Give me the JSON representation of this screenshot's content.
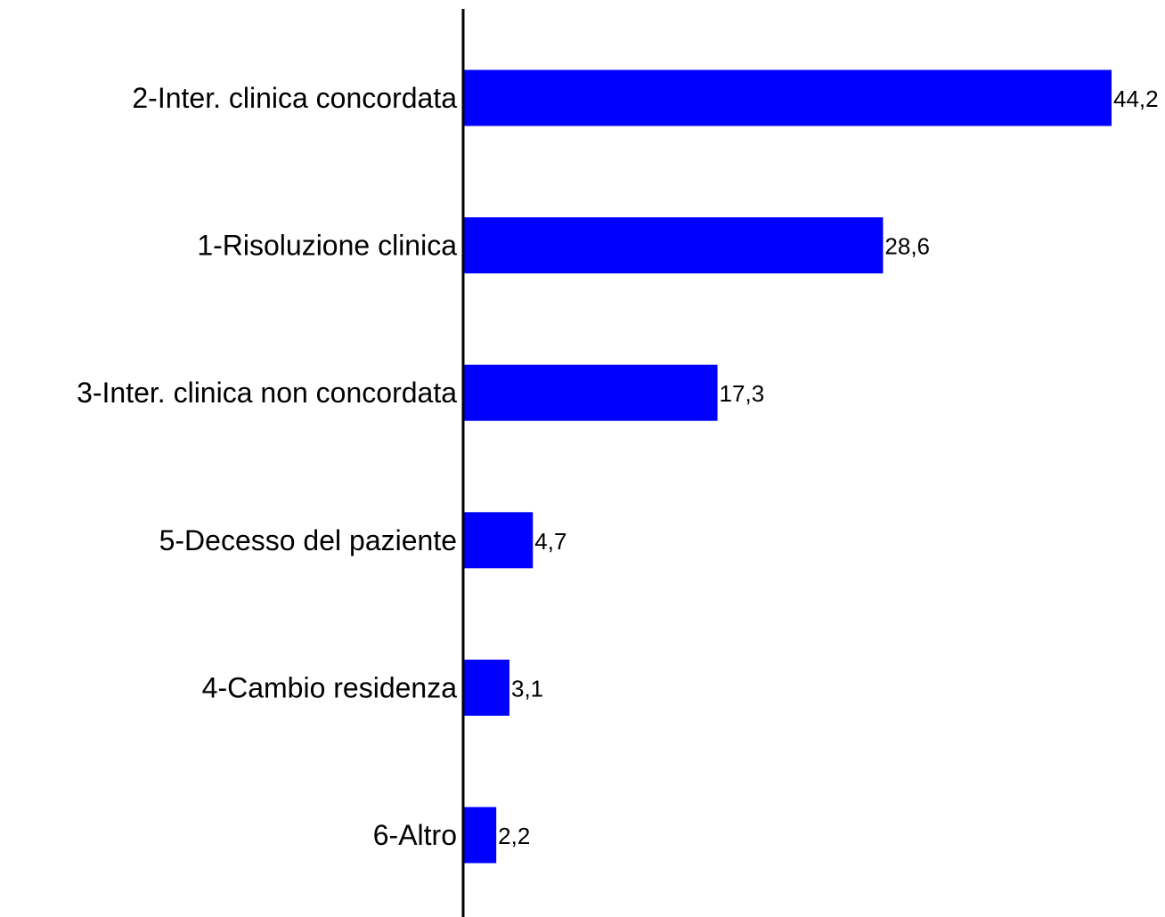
{
  "chart_data": {
    "type": "bar",
    "orientation": "horizontal",
    "categories": [
      "2-Inter. clinica concordata",
      "1-Risoluzione clinica",
      "3-Inter. clinica non concordata",
      "5-Decesso del paziente",
      "4-Cambio residenza",
      "6-Altro"
    ],
    "values": [
      44.2,
      28.6,
      17.3,
      4.7,
      3.1,
      2.2
    ],
    "value_labels": [
      "44,2",
      "28,6",
      "17,3",
      "4,7",
      "3,1",
      "2,2"
    ],
    "title": "",
    "xlabel": "",
    "ylabel": "",
    "xlim": [
      0,
      44.2
    ],
    "grid": false,
    "legend": "none",
    "colors": {
      "bar": "#0000ff",
      "axis": "#000000",
      "text": "#000000"
    }
  }
}
